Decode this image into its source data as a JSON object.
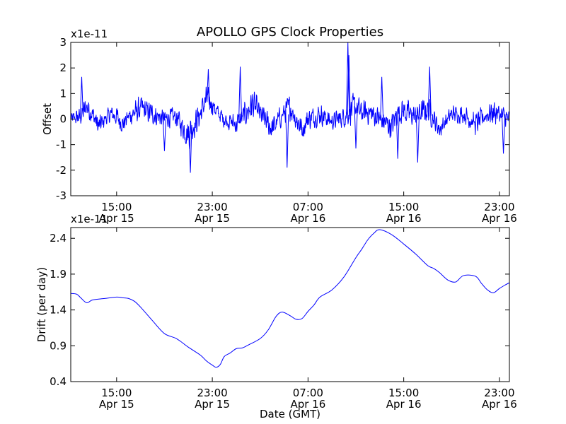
{
  "figure": {
    "title": "APOLLO GPS Clock Properties",
    "xlabel": "Date (GMT)",
    "line_color": "#0000ff"
  },
  "chart_data": [
    {
      "type": "line",
      "name": "offset",
      "ylabel": "Offset",
      "scale_label": "x1e-11",
      "ylim": [
        -3,
        3
      ],
      "yticks": [
        -3,
        -2,
        -1,
        0,
        1,
        2,
        3
      ],
      "ytick_labels": [
        "-3",
        "-2",
        "-1",
        "0",
        "1",
        "2",
        "3"
      ],
      "xlim": [
        "2013-04-15T11:10",
        "2013-04-16T23:50"
      ],
      "xticks": [
        {
          "time": "2013-04-15T15:00",
          "line1": "15:00",
          "line2": "Apr 15"
        },
        {
          "time": "2013-04-15T23:00",
          "line1": "23:00",
          "line2": "Apr 15"
        },
        {
          "time": "2013-04-16T07:00",
          "line1": "07:00",
          "line2": "Apr 16"
        },
        {
          "time": "2013-04-16T15:00",
          "line1": "15:00",
          "line2": "Apr 16"
        },
        {
          "time": "2013-04-16T23:00",
          "line1": "23:00",
          "line2": "Apr 16"
        }
      ],
      "envelope": {
        "x": [
          "2013-04-15T11:10",
          "2013-04-15T12:00",
          "2013-04-15T12:30",
          "2013-04-15T13:00",
          "2013-04-15T13:30",
          "2013-04-15T14:00",
          "2013-04-15T14:30",
          "2013-04-15T15:00",
          "2013-04-15T15:30",
          "2013-04-15T16:00",
          "2013-04-15T17:00",
          "2013-04-15T18:00",
          "2013-04-15T19:00",
          "2013-04-15T20:00",
          "2013-04-15T20:30",
          "2013-04-15T21:00",
          "2013-04-15T21:30",
          "2013-04-15T22:00",
          "2013-04-15T22:30",
          "2013-04-15T23:00",
          "2013-04-15T23:30",
          "2013-04-16T00:00",
          "2013-04-16T01:00",
          "2013-04-16T02:00",
          "2013-04-16T02:20",
          "2013-04-16T03:00",
          "2013-04-16T04:00",
          "2013-04-16T04:45",
          "2013-04-16T05:30",
          "2013-04-16T06:00",
          "2013-04-16T06:30",
          "2013-04-16T07:00",
          "2013-04-16T08:00",
          "2013-04-16T09:00",
          "2013-04-16T10:00",
          "2013-04-16T10:30",
          "2013-04-16T11:00",
          "2013-04-16T11:30",
          "2013-04-16T12:00",
          "2013-04-16T13:00",
          "2013-04-16T14:00",
          "2013-04-16T14:30",
          "2013-04-16T15:00",
          "2013-04-16T16:00",
          "2013-04-16T17:00",
          "2013-04-16T18:00",
          "2013-04-16T19:00",
          "2013-04-16T20:00",
          "2013-04-16T21:00",
          "2013-04-16T22:00",
          "2013-04-16T22:30",
          "2013-04-16T23:00",
          "2013-04-16T23:50"
        ],
        "center": [
          0.0,
          0.1,
          0.5,
          0.2,
          -0.3,
          0.0,
          0.2,
          0.1,
          -0.2,
          0.1,
          0.4,
          0.2,
          0.0,
          0.1,
          -0.3,
          -0.6,
          -0.2,
          0.2,
          0.8,
          0.6,
          0.2,
          0.0,
          -0.2,
          0.3,
          0.6,
          0.2,
          -0.4,
          0.1,
          0.5,
          0.0,
          -0.4,
          0.0,
          0.2,
          -0.1,
          0.1,
          0.3,
          0.5,
          0.2,
          0.3,
          0.0,
          -0.3,
          0.3,
          0.3,
          0.1,
          0.4,
          -0.4,
          0.2,
          0.2,
          -0.2,
          0.2,
          0.3,
          0.2,
          0.0
        ],
        "amplitude": [
          0.3,
          0.4,
          0.6,
          0.5,
          0.5,
          0.4,
          0.4,
          0.5,
          0.4,
          0.4,
          0.6,
          0.5,
          0.4,
          0.5,
          0.5,
          0.8,
          0.6,
          0.6,
          0.6,
          0.5,
          0.4,
          0.4,
          0.5,
          0.6,
          0.7,
          0.5,
          0.6,
          0.5,
          0.6,
          0.5,
          0.6,
          0.5,
          0.5,
          0.4,
          0.5,
          0.6,
          0.7,
          0.5,
          0.6,
          0.5,
          0.6,
          0.6,
          0.6,
          0.5,
          0.6,
          0.4,
          0.4,
          0.4,
          0.5,
          0.5,
          0.6,
          0.5,
          0.4
        ]
      },
      "spikes": [
        {
          "time": "2013-04-15T12:05",
          "value": 1.65
        },
        {
          "time": "2013-04-15T19:00",
          "value": -1.25
        },
        {
          "time": "2013-04-15T21:10",
          "value": -2.1
        },
        {
          "time": "2013-04-15T22:40",
          "value": 1.95
        },
        {
          "time": "2013-04-16T01:20",
          "value": 2.05
        },
        {
          "time": "2013-04-16T05:15",
          "value": -1.9
        },
        {
          "time": "2013-04-16T10:20",
          "value": 3.0
        },
        {
          "time": "2013-04-16T10:25",
          "value": 2.5
        },
        {
          "time": "2013-04-16T11:00",
          "value": -1.15
        },
        {
          "time": "2013-04-16T13:10",
          "value": 1.65
        },
        {
          "time": "2013-04-16T14:30",
          "value": -1.55
        },
        {
          "time": "2013-04-16T16:10",
          "value": -1.7
        },
        {
          "time": "2013-04-16T17:10",
          "value": 2.05
        },
        {
          "time": "2013-04-16T23:20",
          "value": -1.35
        }
      ]
    },
    {
      "type": "line",
      "name": "drift",
      "ylabel": "Drift (per day)",
      "scale_label": "x1e-11",
      "ylim": [
        0.4,
        2.55
      ],
      "yticks": [
        0.4,
        0.9,
        1.4,
        1.9,
        2.4
      ],
      "ytick_labels": [
        "0.4",
        "0.9",
        "1.4",
        "1.9",
        "2.4"
      ],
      "xlim": [
        "2013-04-15T11:10",
        "2013-04-16T23:50"
      ],
      "xticks": [
        {
          "time": "2013-04-15T15:00",
          "line1": "15:00",
          "line2": "Apr 15"
        },
        {
          "time": "2013-04-15T23:00",
          "line1": "23:00",
          "line2": "Apr 15"
        },
        {
          "time": "2013-04-16T07:00",
          "line1": "07:00",
          "line2": "Apr 16"
        },
        {
          "time": "2013-04-16T15:00",
          "line1": "15:00",
          "line2": "Apr 16"
        },
        {
          "time": "2013-04-16T23:00",
          "line1": "23:00",
          "line2": "Apr 16"
        }
      ],
      "x": [
        "2013-04-15T11:10",
        "2013-04-15T11:40",
        "2013-04-15T12:00",
        "2013-04-15T12:30",
        "2013-04-15T13:00",
        "2013-04-15T14:00",
        "2013-04-15T15:00",
        "2013-04-15T15:30",
        "2013-04-15T16:00",
        "2013-04-15T16:30",
        "2013-04-15T17:00",
        "2013-04-15T18:00",
        "2013-04-15T19:00",
        "2013-04-15T20:00",
        "2013-04-15T21:00",
        "2013-04-15T22:00",
        "2013-04-15T22:30",
        "2013-04-15T23:00",
        "2013-04-15T23:20",
        "2013-04-15T23:40",
        "2013-04-16T00:00",
        "2013-04-16T00:30",
        "2013-04-16T01:00",
        "2013-04-16T01:30",
        "2013-04-16T02:00",
        "2013-04-16T03:00",
        "2013-04-16T03:40",
        "2013-04-16T04:20",
        "2013-04-16T04:50",
        "2013-04-16T05:30",
        "2013-04-16T06:00",
        "2013-04-16T06:30",
        "2013-04-16T07:00",
        "2013-04-16T07:30",
        "2013-04-16T08:00",
        "2013-04-16T09:00",
        "2013-04-16T10:00",
        "2013-04-16T11:00",
        "2013-04-16T11:30",
        "2013-04-16T12:00",
        "2013-04-16T12:30",
        "2013-04-16T13:00",
        "2013-04-16T14:00",
        "2013-04-16T15:00",
        "2013-04-16T16:00",
        "2013-04-16T17:00",
        "2013-04-16T17:30",
        "2013-04-16T18:00",
        "2013-04-16T18:40",
        "2013-04-16T19:20",
        "2013-04-16T20:00",
        "2013-04-16T21:00",
        "2013-04-16T21:30",
        "2013-04-16T22:00",
        "2013-04-16T22:30",
        "2013-04-16T23:00",
        "2013-04-16T23:30",
        "2013-04-16T23:50"
      ],
      "values": [
        1.63,
        1.62,
        1.57,
        1.5,
        1.54,
        1.56,
        1.58,
        1.57,
        1.56,
        1.52,
        1.44,
        1.25,
        1.07,
        1.0,
        0.88,
        0.77,
        0.69,
        0.63,
        0.6,
        0.64,
        0.75,
        0.8,
        0.86,
        0.87,
        0.91,
        1.0,
        1.12,
        1.31,
        1.37,
        1.32,
        1.27,
        1.28,
        1.38,
        1.47,
        1.58,
        1.68,
        1.86,
        2.13,
        2.25,
        2.38,
        2.47,
        2.52,
        2.45,
        2.32,
        2.18,
        2.02,
        1.98,
        1.92,
        1.82,
        1.79,
        1.88,
        1.87,
        1.77,
        1.68,
        1.64,
        1.7,
        1.75,
        1.78
      ]
    }
  ]
}
